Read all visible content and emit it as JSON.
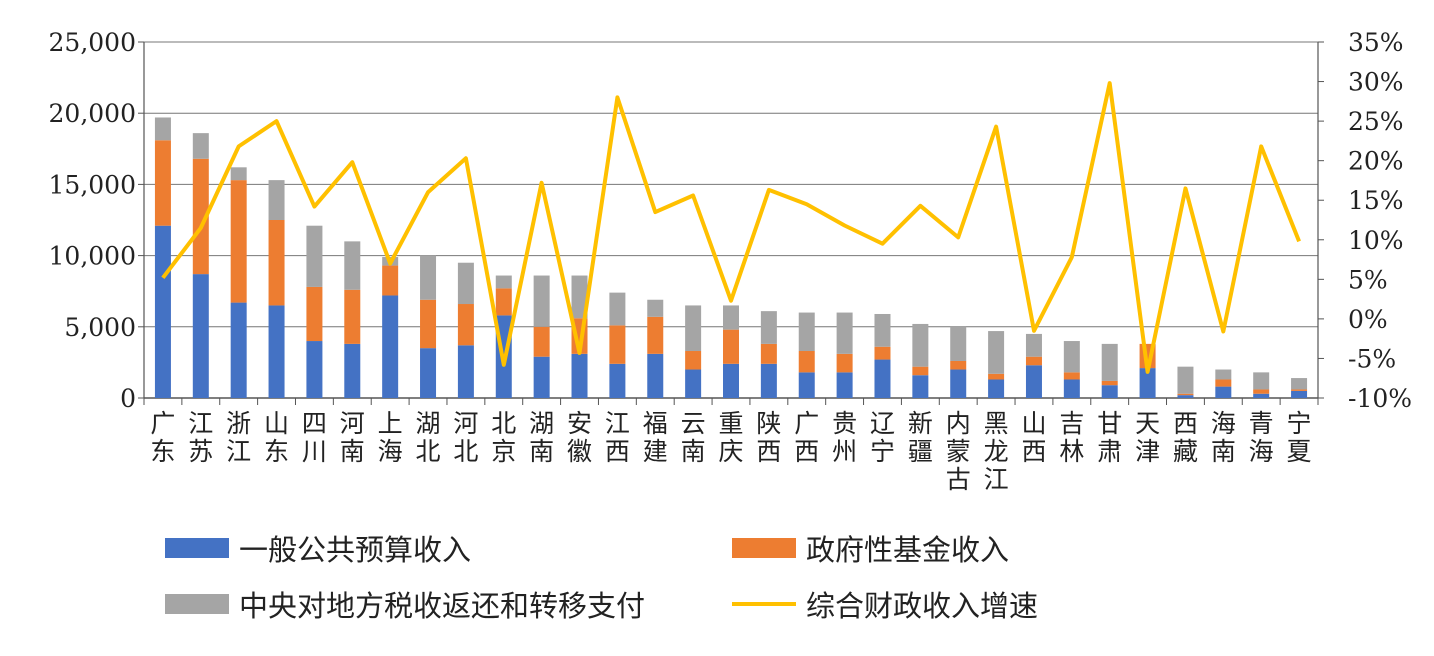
{
  "chart_data": {
    "type": "bar",
    "stacked": true,
    "categories": [
      "广东",
      "江苏",
      "浙江",
      "山东",
      "四川",
      "河南",
      "上海",
      "湖北",
      "河北",
      "北京",
      "湖南",
      "安徽",
      "江西",
      "福建",
      "云南",
      "重庆",
      "陕西",
      "广西",
      "贵州",
      "辽宁",
      "新疆",
      "内蒙古",
      "黑龙江",
      "山西",
      "吉林",
      "甘肃",
      "天津",
      "西藏",
      "海南",
      "青海",
      "宁夏"
    ],
    "series": [
      {
        "name": "一般公共预算收入",
        "color": "#4472C4",
        "axis": "left",
        "values": [
          12100,
          8700,
          6700,
          6500,
          4000,
          3800,
          7200,
          3500,
          3700,
          5800,
          2900,
          3100,
          2400,
          3100,
          2000,
          2400,
          2400,
          1800,
          1800,
          2700,
          1600,
          2000,
          1300,
          2300,
          1300,
          900,
          2100,
          200,
          800,
          300,
          500
        ]
      },
      {
        "name": "政府性基金收入",
        "color": "#ED7D31",
        "axis": "left",
        "values": [
          6000,
          8100,
          8600,
          6000,
          3800,
          3800,
          2100,
          3400,
          2900,
          1900,
          2100,
          2500,
          2700,
          2600,
          1300,
          2400,
          1400,
          1500,
          1300,
          900,
          600,
          600,
          400,
          600,
          500,
          300,
          1700,
          100,
          500,
          300,
          100
        ]
      },
      {
        "name": "中央对地方税收返还和转移支付",
        "color": "#A5A5A5",
        "axis": "left",
        "values": [
          1600,
          1800,
          900,
          2800,
          4300,
          3400,
          600,
          3100,
          2900,
          900,
          3600,
          3000,
          2300,
          1200,
          3200,
          1700,
          2300,
          2700,
          2900,
          2300,
          3000,
          2400,
          3000,
          1600,
          2200,
          2600,
          0,
          1900,
          700,
          1200,
          800
        ]
      },
      {
        "name": "综合财政收入增速",
        "color": "#FFC000",
        "axis": "right",
        "type": "line",
        "values": [
          5.2,
          11.5,
          21.8,
          25,
          14.2,
          19.8,
          7,
          16,
          20.3,
          -5.8,
          17.2,
          -4.3,
          28,
          13.5,
          15.6,
          2.3,
          16.3,
          14.5,
          11.8,
          9.5,
          14.3,
          10.3,
          24.3,
          -1.5,
          7.8,
          29.8,
          -6.7,
          16.5,
          -1.6,
          21.8,
          9.8
        ]
      }
    ],
    "ylim": [
      0,
      25000
    ],
    "yticks": [
      "0",
      "5,000",
      "10,000",
      "15,000",
      "20,000",
      "25,000"
    ],
    "ylim_right": [
      -10,
      35
    ],
    "yticks_right": [
      "-10%",
      "-5%",
      "0%",
      "5%",
      "10%",
      "15%",
      "20%",
      "25%",
      "30%",
      "35%"
    ],
    "grid": true,
    "legend_position": "bottom"
  }
}
